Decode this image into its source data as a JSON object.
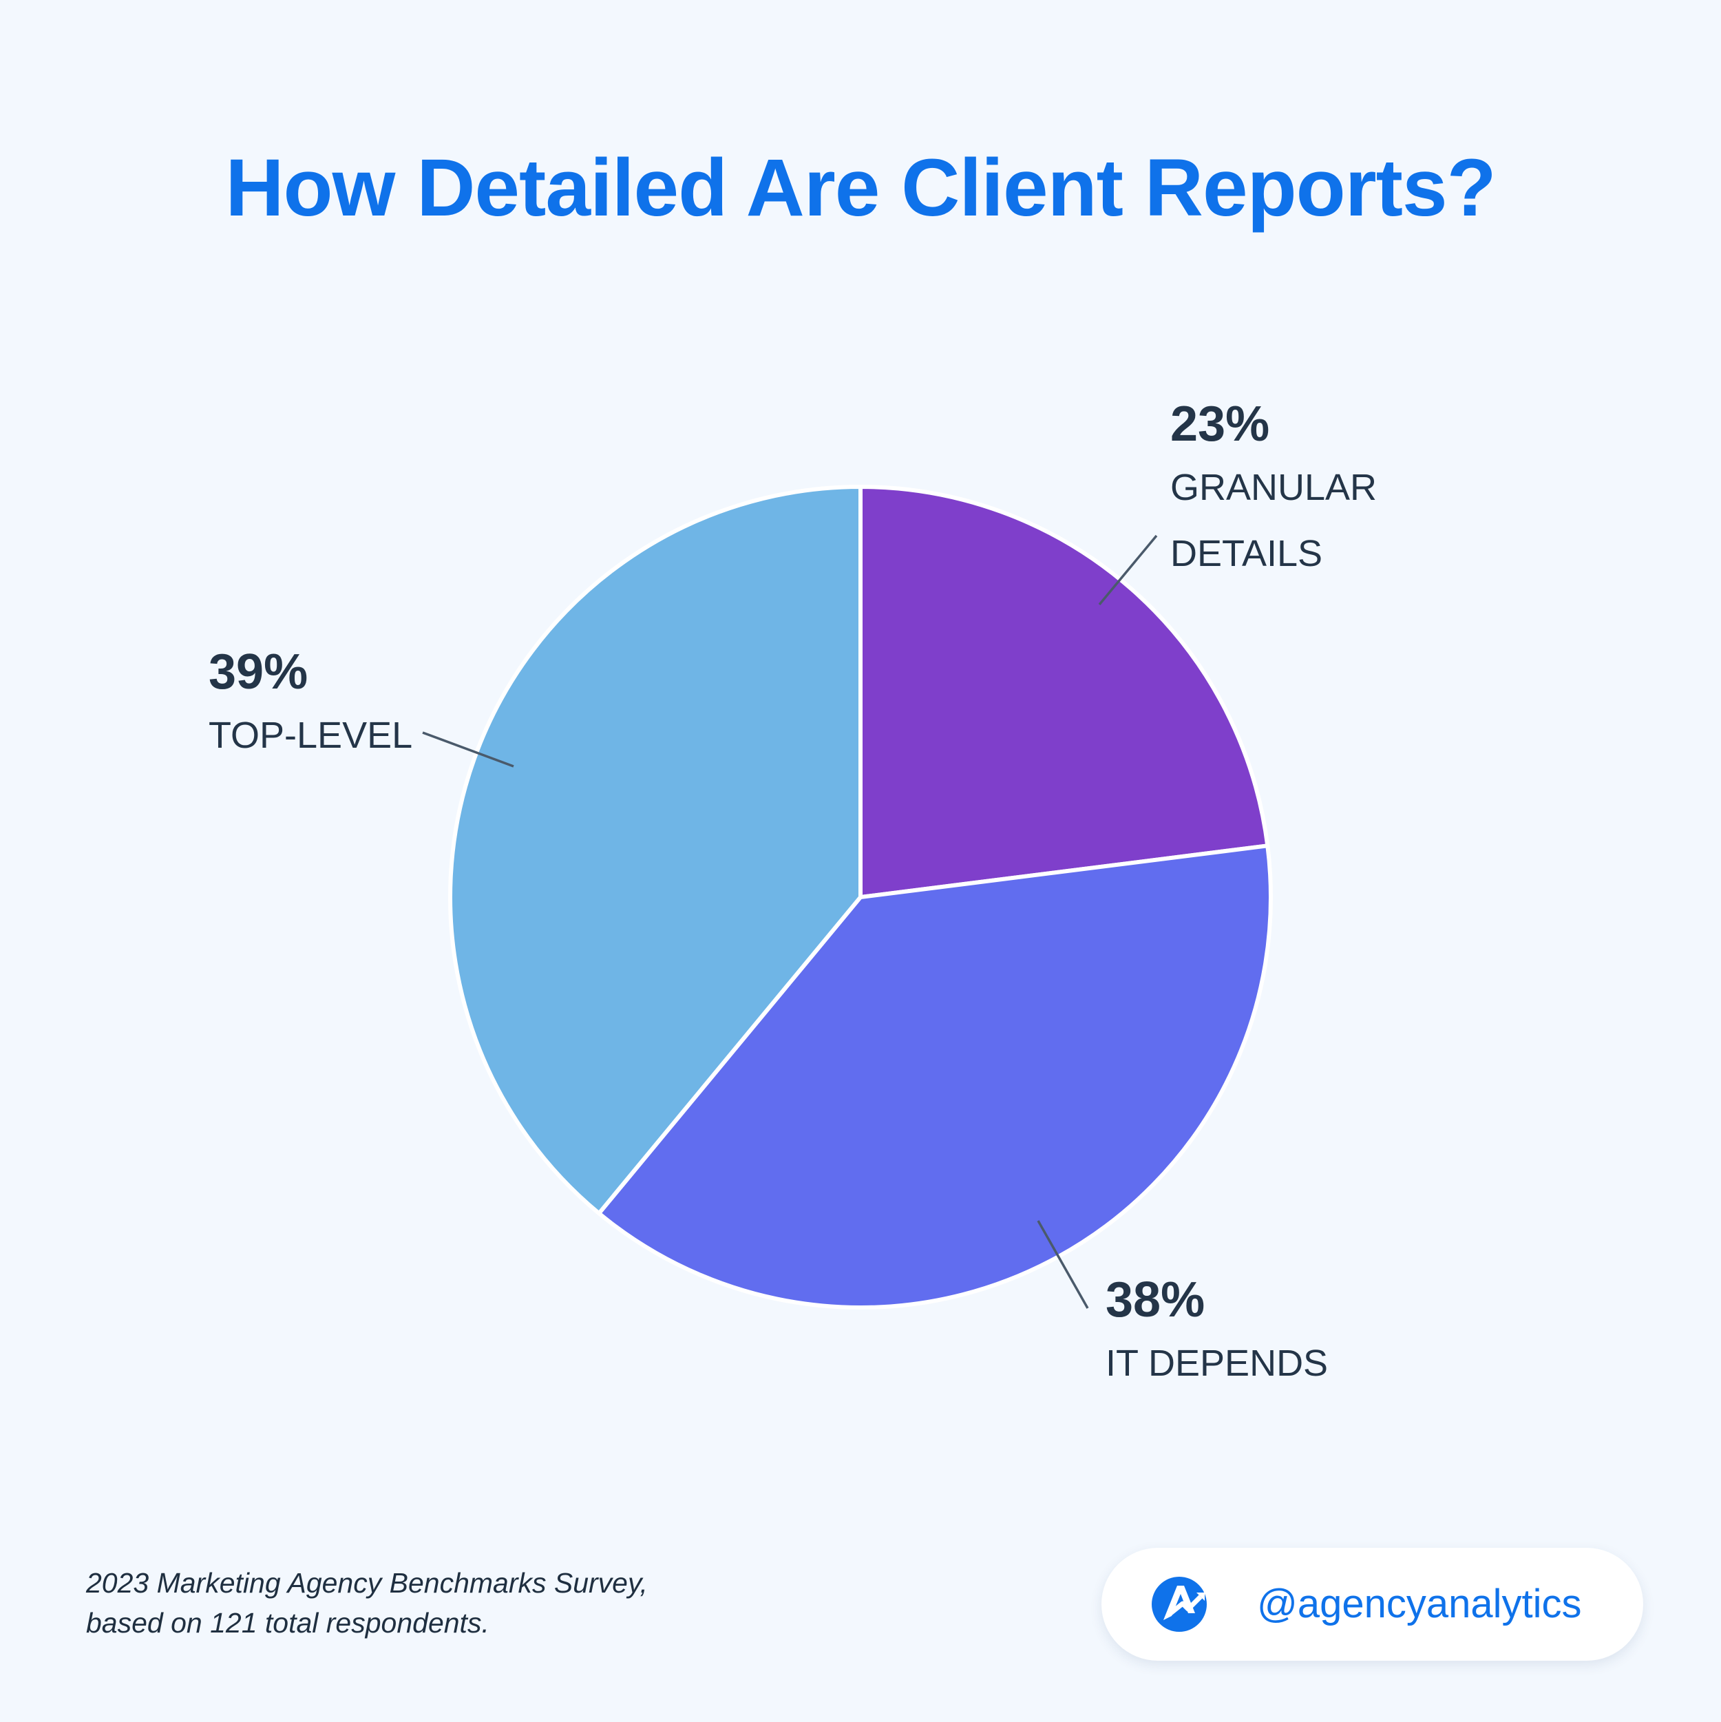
{
  "title": "How Detailed Are Client Reports?",
  "colors": {
    "background": "#f3f8fe",
    "title": "#0f72ea",
    "text": "#243548",
    "slice_granular": "#7f3fcb",
    "slice_depends": "#616def",
    "slice_top": "#6fb5e6"
  },
  "chart_data": {
    "type": "pie",
    "slices": [
      {
        "pct_label": "23%",
        "label_lines": [
          "GRANULAR",
          "DETAILS"
        ],
        "value": 23,
        "color": "#7f3fcb"
      },
      {
        "pct_label": "38%",
        "label_lines": [
          "IT DEPENDS"
        ],
        "value": 38,
        "color": "#616def"
      },
      {
        "pct_label": "39%",
        "label_lines": [
          "TOP-LEVEL"
        ],
        "value": 39,
        "color": "#6fb5e6"
      }
    ]
  },
  "footer": {
    "source_lines": [
      "2023 Marketing Agency Benchmarks Survey,",
      "based on 121 total respondents."
    ],
    "brand_handle": "@agencyanalytics",
    "brand_icon": "agencyanalytics-logo-icon"
  }
}
